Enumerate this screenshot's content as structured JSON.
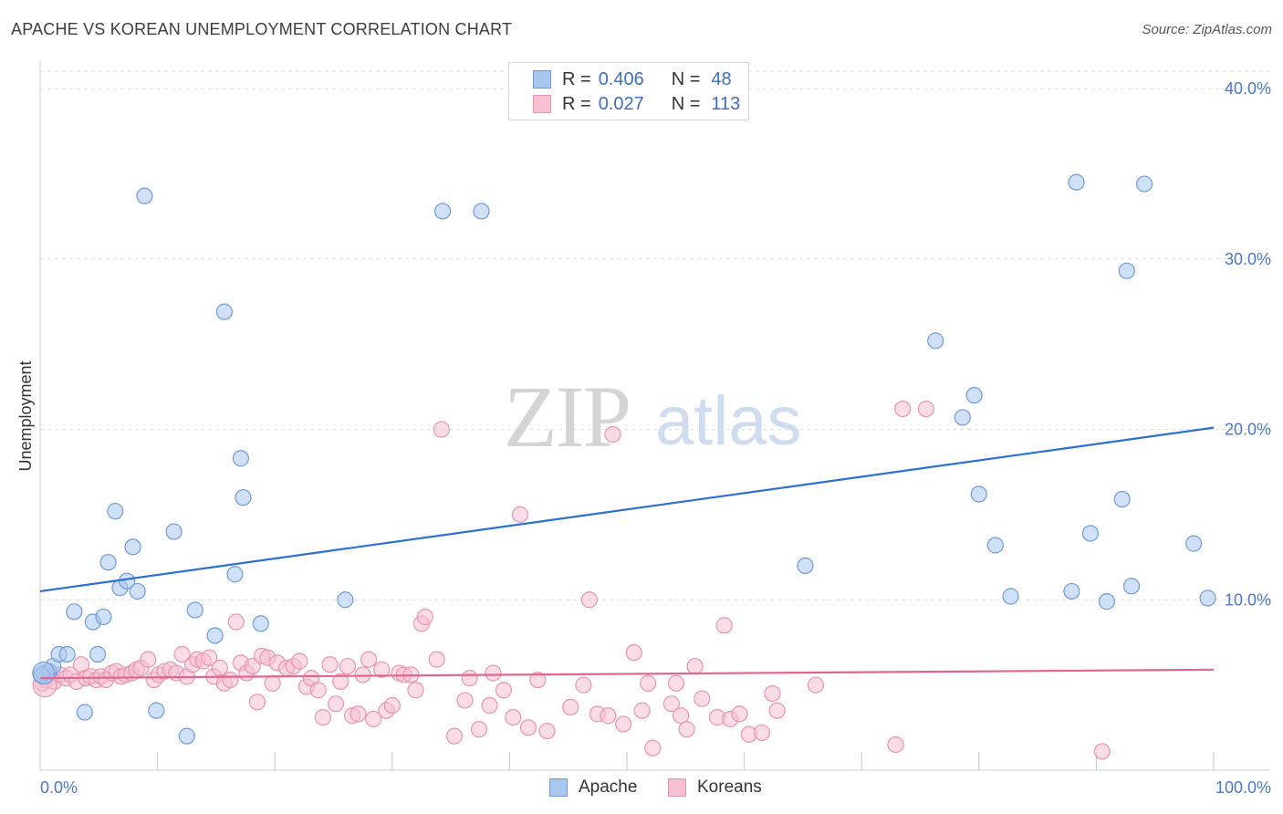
{
  "title": "APACHE VS KOREAN UNEMPLOYMENT CORRELATION CHART",
  "source": "Source: ZipAtlas.com",
  "watermark": {
    "zip": "ZIP",
    "atlas": "atlas"
  },
  "legend": {
    "rows": [
      {
        "r_label": "R =",
        "r_value": "0.406",
        "n_label": "N =",
        "n_value": "48",
        "color": "#a9c6ee",
        "border": "#6e9bd8"
      },
      {
        "r_label": "R =",
        "r_value": "0.027",
        "n_label": "N =",
        "n_value": "113",
        "color": "#f6c0d1",
        "border": "#e994ae"
      }
    ]
  },
  "bottom_legend": {
    "items": [
      {
        "label": "Apache",
        "color": "#a9c6ee",
        "border": "#6e9bd8"
      },
      {
        "label": "Koreans",
        "color": "#f6c0d1",
        "border": "#e994ae"
      }
    ]
  },
  "chart_data": {
    "type": "scatter",
    "title": "APACHE VS KOREAN UNEMPLOYMENT CORRELATION CHART",
    "xlabel": "",
    "ylabel": "Unemployment",
    "xlim": [
      0,
      100
    ],
    "ylim": [
      0,
      40
    ],
    "x_tick_labels": [
      "0.0%",
      "100.0%"
    ],
    "y_ticks": [
      10,
      20,
      30,
      40
    ],
    "y_tick_labels": [
      "10.0%",
      "20.0%",
      "30.0%",
      "40.0%"
    ],
    "grid": true,
    "legend_position": "top-center",
    "series": [
      {
        "name": "Apache",
        "color": "#a9c6ee",
        "edge": "#6e9bd8",
        "trend_color": "#2c6fd1",
        "trend": {
          "x": [
            0,
            100
          ],
          "y": [
            10.5,
            20.1
          ]
        },
        "points": [
          [
            0.3,
            5.7
          ],
          [
            0.8,
            5.8
          ],
          [
            1.1,
            6.1
          ],
          [
            1.6,
            6.8
          ],
          [
            2.3,
            6.8
          ],
          [
            2.9,
            9.3
          ],
          [
            3.8,
            3.4
          ],
          [
            4.5,
            8.7
          ],
          [
            4.9,
            6.8
          ],
          [
            5.4,
            9.0
          ],
          [
            5.8,
            12.2
          ],
          [
            6.4,
            15.2
          ],
          [
            6.8,
            10.7
          ],
          [
            7.4,
            11.1
          ],
          [
            7.9,
            13.1
          ],
          [
            8.3,
            10.5
          ],
          [
            8.9,
            33.7
          ],
          [
            9.9,
            3.5
          ],
          [
            11.4,
            14.0
          ],
          [
            12.5,
            2.0
          ],
          [
            13.2,
            9.4
          ],
          [
            14.9,
            7.9
          ],
          [
            15.7,
            26.9
          ],
          [
            16.6,
            11.5
          ],
          [
            17.1,
            18.3
          ],
          [
            17.3,
            16.0
          ],
          [
            18.8,
            8.6
          ],
          [
            26.0,
            10.0
          ],
          [
            34.3,
            32.8
          ],
          [
            37.6,
            32.8
          ],
          [
            65.2,
            12.0
          ],
          [
            76.3,
            25.2
          ],
          [
            78.6,
            20.7
          ],
          [
            79.6,
            22.0
          ],
          [
            80.0,
            16.2
          ],
          [
            81.4,
            13.2
          ],
          [
            82.7,
            10.2
          ],
          [
            87.9,
            10.5
          ],
          [
            88.3,
            34.5
          ],
          [
            89.5,
            13.9
          ],
          [
            90.9,
            9.9
          ],
          [
            92.2,
            15.9
          ],
          [
            92.6,
            29.3
          ],
          [
            93.0,
            10.8
          ],
          [
            94.1,
            34.4
          ],
          [
            98.3,
            13.3
          ],
          [
            99.5,
            10.1
          ],
          [
            0.1,
            5.6
          ]
        ]
      },
      {
        "name": "Koreans",
        "color": "#f6c0d1",
        "edge": "#e994ae",
        "trend_color": "#e0658f",
        "trend": {
          "x": [
            0,
            100
          ],
          "y": [
            5.4,
            5.9
          ]
        },
        "points": [
          [
            0.2,
            5.1
          ],
          [
            0.5,
            5.3
          ],
          [
            0.9,
            5.5
          ],
          [
            1.2,
            5.2
          ],
          [
            1.7,
            5.6
          ],
          [
            2.2,
            5.4
          ],
          [
            2.6,
            5.6
          ],
          [
            3.1,
            5.2
          ],
          [
            3.5,
            6.2
          ],
          [
            3.9,
            5.4
          ],
          [
            4.3,
            5.5
          ],
          [
            4.8,
            5.3
          ],
          [
            5.2,
            5.5
          ],
          [
            5.6,
            5.3
          ],
          [
            6.1,
            5.7
          ],
          [
            6.5,
            5.8
          ],
          [
            6.9,
            5.5
          ],
          [
            7.3,
            5.6
          ],
          [
            7.8,
            5.7
          ],
          [
            8.2,
            5.9
          ],
          [
            8.6,
            6.0
          ],
          [
            9.2,
            6.5
          ],
          [
            9.7,
            5.3
          ],
          [
            10.1,
            5.6
          ],
          [
            10.6,
            5.8
          ],
          [
            11.1,
            5.9
          ],
          [
            11.6,
            5.7
          ],
          [
            12.1,
            6.8
          ],
          [
            12.5,
            5.5
          ],
          [
            13.0,
            6.2
          ],
          [
            13.4,
            6.5
          ],
          [
            13.9,
            6.4
          ],
          [
            14.4,
            6.6
          ],
          [
            14.8,
            5.5
          ],
          [
            15.3,
            6.0
          ],
          [
            15.7,
            5.1
          ],
          [
            16.2,
            5.3
          ],
          [
            16.7,
            8.7
          ],
          [
            17.1,
            6.3
          ],
          [
            17.6,
            5.7
          ],
          [
            18.1,
            6.1
          ],
          [
            18.5,
            4.0
          ],
          [
            18.9,
            6.7
          ],
          [
            19.4,
            6.6
          ],
          [
            19.8,
            5.1
          ],
          [
            20.2,
            6.3
          ],
          [
            21.0,
            6.0
          ],
          [
            21.6,
            6.1
          ],
          [
            22.1,
            6.4
          ],
          [
            22.7,
            4.9
          ],
          [
            23.1,
            5.4
          ],
          [
            23.7,
            4.7
          ],
          [
            24.1,
            3.1
          ],
          [
            24.7,
            6.2
          ],
          [
            25.2,
            3.9
          ],
          [
            25.6,
            5.2
          ],
          [
            26.2,
            6.1
          ],
          [
            26.6,
            3.2
          ],
          [
            27.1,
            3.3
          ],
          [
            27.5,
            5.6
          ],
          [
            28.0,
            6.5
          ],
          [
            28.4,
            3.0
          ],
          [
            29.1,
            5.9
          ],
          [
            29.5,
            3.5
          ],
          [
            30.0,
            3.8
          ],
          [
            30.6,
            5.7
          ],
          [
            31.0,
            5.6
          ],
          [
            31.6,
            5.6
          ],
          [
            32.0,
            4.7
          ],
          [
            32.5,
            8.6
          ],
          [
            32.8,
            9.0
          ],
          [
            33.8,
            6.5
          ],
          [
            34.2,
            20.0
          ],
          [
            35.3,
            2.0
          ],
          [
            36.2,
            4.1
          ],
          [
            36.6,
            5.4
          ],
          [
            37.4,
            2.4
          ],
          [
            38.3,
            3.8
          ],
          [
            38.6,
            5.7
          ],
          [
            39.5,
            4.7
          ],
          [
            40.3,
            3.1
          ],
          [
            40.9,
            15.0
          ],
          [
            41.6,
            2.5
          ],
          [
            42.4,
            5.3
          ],
          [
            43.2,
            2.3
          ],
          [
            45.2,
            3.7
          ],
          [
            46.3,
            5.0
          ],
          [
            46.8,
            10.0
          ],
          [
            47.5,
            3.3
          ],
          [
            48.4,
            3.2
          ],
          [
            48.8,
            19.7
          ],
          [
            49.7,
            2.7
          ],
          [
            50.6,
            6.9
          ],
          [
            51.3,
            3.5
          ],
          [
            51.8,
            5.1
          ],
          [
            52.2,
            1.3
          ],
          [
            53.8,
            3.9
          ],
          [
            54.2,
            5.1
          ],
          [
            54.6,
            3.2
          ],
          [
            55.1,
            2.4
          ],
          [
            55.8,
            6.1
          ],
          [
            56.4,
            4.2
          ],
          [
            57.7,
            3.1
          ],
          [
            58.3,
            8.5
          ],
          [
            58.8,
            3.0
          ],
          [
            59.6,
            3.3
          ],
          [
            60.4,
            2.1
          ],
          [
            61.5,
            2.2
          ],
          [
            62.4,
            4.5
          ],
          [
            62.8,
            3.5
          ],
          [
            66.1,
            5.0
          ],
          [
            72.9,
            1.5
          ],
          [
            73.5,
            21.2
          ]
        ]
      }
    ],
    "extra_points_koreans": [
      [
        75.5,
        21.2
      ],
      [
        90.5,
        1.1
      ]
    ]
  }
}
